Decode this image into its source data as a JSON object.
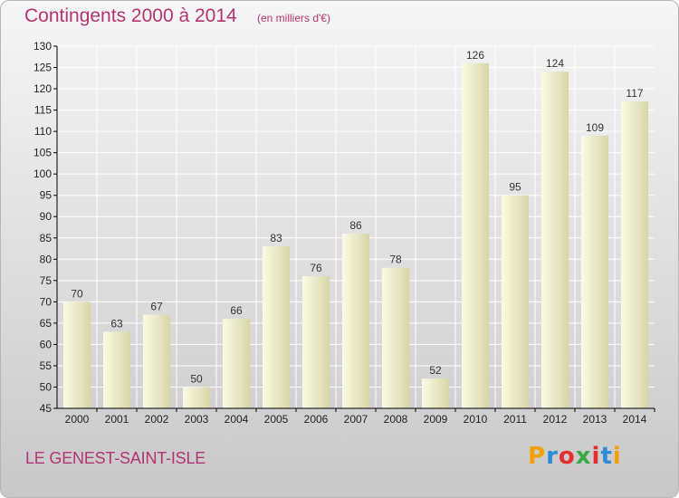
{
  "header": {
    "title": "Contingents 2000 à 2014",
    "subtitle": "(en milliers d'€)"
  },
  "footer": {
    "commune": "LE GENEST-SAINT-ISLE",
    "logo": {
      "letters": [
        "P",
        "r",
        "o",
        "x",
        "i",
        "t",
        "i"
      ],
      "colors": [
        "#f2a100",
        "#2a8bd6",
        "#e3302f",
        "#3aa843",
        "#e3302f",
        "#2a8bd6",
        "#f2a100"
      ]
    }
  },
  "chart_data": {
    "type": "bar",
    "categories": [
      "2000",
      "2001",
      "2002",
      "2003",
      "2004",
      "2005",
      "2006",
      "2007",
      "2008",
      "2009",
      "2010",
      "2011",
      "2012",
      "2013",
      "2014"
    ],
    "values": [
      70,
      63,
      67,
      50,
      66,
      83,
      76,
      86,
      78,
      52,
      126,
      95,
      124,
      109,
      117
    ],
    "ylim": [
      45,
      130
    ],
    "yticks": [
      45,
      50,
      55,
      60,
      65,
      70,
      75,
      80,
      85,
      90,
      95,
      100,
      105,
      110,
      115,
      120,
      125,
      130
    ],
    "grid": true,
    "data_labels": true,
    "colors": {
      "bar_light": "#fbfbe6",
      "bar_dark": "#d6d6a8",
      "grid": "#ffffff",
      "axis": "#000000"
    }
  }
}
